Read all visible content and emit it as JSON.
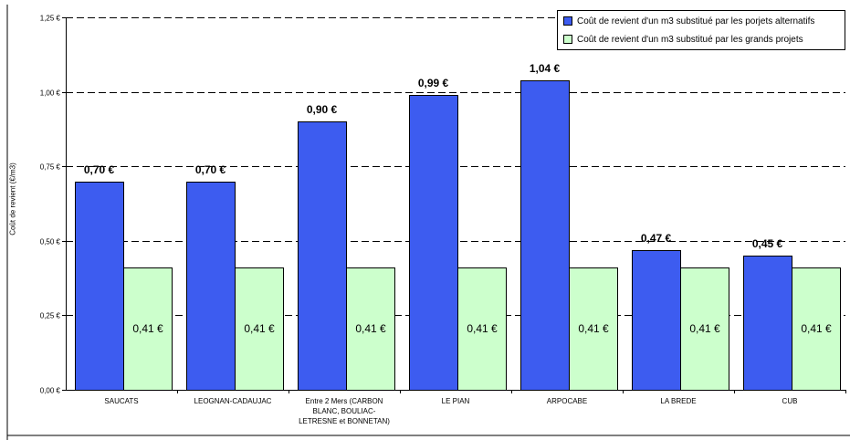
{
  "chart_data": {
    "type": "bar",
    "title": "",
    "xlabel": "",
    "ylabel": "Coût de revient (€/m3)",
    "ylim": [
      0,
      1.25
    ],
    "yticks": [
      {
        "value": 0,
        "label": "0,00 €"
      },
      {
        "value": 0.25,
        "label": "0,25 €"
      },
      {
        "value": 0.5,
        "label": "0,50 €"
      },
      {
        "value": 0.75,
        "label": "0,75 €"
      },
      {
        "value": 1.0,
        "label": "1,00 €"
      },
      {
        "value": 1.25,
        "label": "1,25 €"
      }
    ],
    "grid": "horizontal dashed",
    "legend_position": "top-right",
    "categories": [
      [
        "SAUCATS"
      ],
      [
        "LEOGNAN-CADAUJAC"
      ],
      [
        "Entre 2 Mers (CARBON",
        "BLANC, BOULIAC-",
        "LETRESNE et BONNETAN)"
      ],
      [
        "LE PIAN"
      ],
      [
        "ARPOCABE"
      ],
      [
        "LA BREDE"
      ],
      [
        "CUB"
      ]
    ],
    "series": [
      {
        "name": "Coût de revient d'un m3 substitué par les porjets alternatifs",
        "color": "#3d5cf0",
        "values": [
          0.7,
          0.7,
          0.9,
          0.99,
          1.04,
          0.47,
          0.45
        ],
        "labels": [
          "0,70 €",
          "0,70 €",
          "0,90 €",
          "0,99 €",
          "1,04 €",
          "0,47 €",
          "0,45 €"
        ],
        "label_style": "bold-above"
      },
      {
        "name": "Coût de revient d'un m3 substitué par les grands projets",
        "color": "#ccffcc",
        "values": [
          0.41,
          0.41,
          0.41,
          0.41,
          0.41,
          0.41,
          0.41
        ],
        "labels": [
          "0,41 €",
          "0,41 €",
          "0,41 €",
          "0,41 €",
          "0,41 €",
          "0,41 €",
          "0,41 €"
        ],
        "label_style": "inside"
      }
    ]
  }
}
